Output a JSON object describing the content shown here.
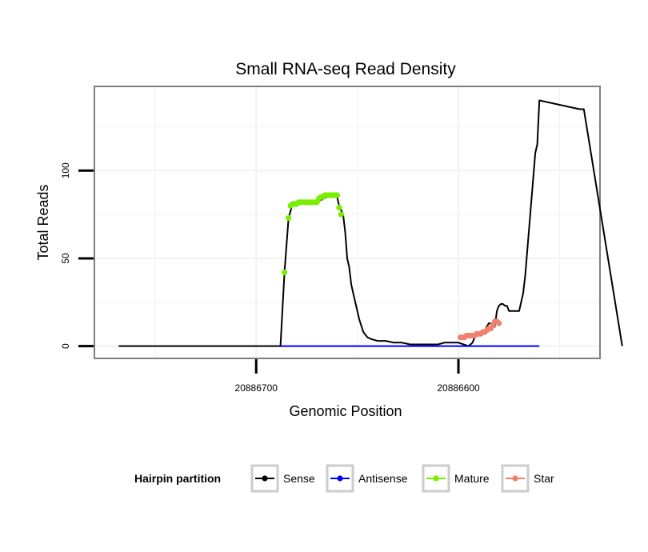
{
  "chart_data": {
    "type": "line",
    "title": "Small RNA-seq Read Density",
    "xlabel": "Genomic Position",
    "ylabel": "Total Reads",
    "x_reversed": true,
    "xlim": [
      20886780,
      20886530
    ],
    "ylim": [
      -7,
      148
    ],
    "xticks": [
      20886700,
      20886600
    ],
    "xtick_labels": [
      "20886700",
      "20886600"
    ],
    "yticks": [
      0,
      50,
      100
    ],
    "ytick_labels": [
      "0",
      "50",
      "100"
    ],
    "grid": true,
    "legend": {
      "title": "Hairpin partition",
      "position": "bottom",
      "entries": [
        {
          "label": "Sense",
          "color": "#000000"
        },
        {
          "label": "Antisense",
          "color": "#0000ff"
        },
        {
          "label": "Mature",
          "color": "#77ee00"
        },
        {
          "label": "Star",
          "color": "#f08070"
        }
      ]
    },
    "series": [
      {
        "name": "Sense",
        "color": "#000000",
        "style": "line",
        "x": [
          20886768,
          20886688,
          20886686,
          20886684,
          20886682,
          20886680,
          20886675,
          20886670,
          20886665,
          20886662,
          20886661,
          20886660,
          20886659,
          20886657,
          20886656,
          20886655,
          20886654,
          20886653,
          20886651,
          20886649,
          20886647,
          20886645,
          20886643,
          20886640,
          20886636,
          20886632,
          20886628,
          20886624,
          20886620,
          20886610,
          20886607,
          20886603,
          20886600,
          20886595,
          20886593,
          20886592,
          20886591,
          20886590,
          20886588,
          20886587,
          20886586,
          20886585,
          20886584,
          20886583,
          20886582,
          20886581,
          20886580,
          20886579,
          20886578,
          20886577,
          20886576,
          20886575,
          20886574,
          20886570,
          20886568,
          20886567,
          20886562,
          20886561,
          20886560,
          20886540,
          20886538,
          20886519
        ],
        "y": [
          0,
          0,
          42,
          73,
          81,
          81,
          82,
          82,
          85,
          86,
          86,
          85,
          80,
          75,
          65,
          50,
          45,
          35,
          25,
          15,
          8,
          5,
          4,
          3,
          3,
          2,
          2,
          1,
          1,
          1,
          2,
          2,
          2,
          0,
          2,
          5,
          6,
          6,
          7,
          9,
          11,
          13,
          13,
          11,
          11,
          20,
          23,
          24,
          24,
          23,
          23,
          20,
          20,
          20,
          30,
          40,
          110,
          115,
          140,
          135,
          135,
          0
        ]
      },
      {
        "name": "Antisense",
        "color": "#0000ff",
        "style": "line",
        "x": [
          20886688,
          20886560
        ],
        "y": [
          0,
          0
        ]
      },
      {
        "name": "Mature",
        "color": "#77ee00",
        "style": "points",
        "x": [
          20886686,
          20886684,
          20886683,
          20886682,
          20886681,
          20886680,
          20886679,
          20886678,
          20886677,
          20886676,
          20886675,
          20886674,
          20886673,
          20886672,
          20886671,
          20886670,
          20886669,
          20886668,
          20886667,
          20886666,
          20886665,
          20886664,
          20886663,
          20886662,
          20886661,
          20886660,
          20886659,
          20886658
        ],
        "y": [
          42,
          73,
          80,
          81,
          81,
          81,
          82,
          82,
          82,
          82,
          82,
          82,
          82,
          82,
          82,
          82,
          84,
          85,
          85,
          86,
          86,
          86,
          86,
          86,
          86,
          86,
          79,
          75
        ]
      },
      {
        "name": "Star",
        "color": "#f08070",
        "style": "points",
        "x": [
          20886599,
          20886598,
          20886597,
          20886596,
          20886595,
          20886594,
          20886593,
          20886592,
          20886591,
          20886590,
          20886589,
          20886588,
          20886587,
          20886586,
          20886585,
          20886584,
          20886583,
          20886582,
          20886581,
          20886580
        ],
        "y": [
          5,
          5,
          5,
          6,
          6,
          6,
          6,
          6,
          7,
          7,
          7,
          8,
          8,
          9,
          10,
          10,
          12,
          14,
          14,
          13
        ]
      }
    ]
  }
}
